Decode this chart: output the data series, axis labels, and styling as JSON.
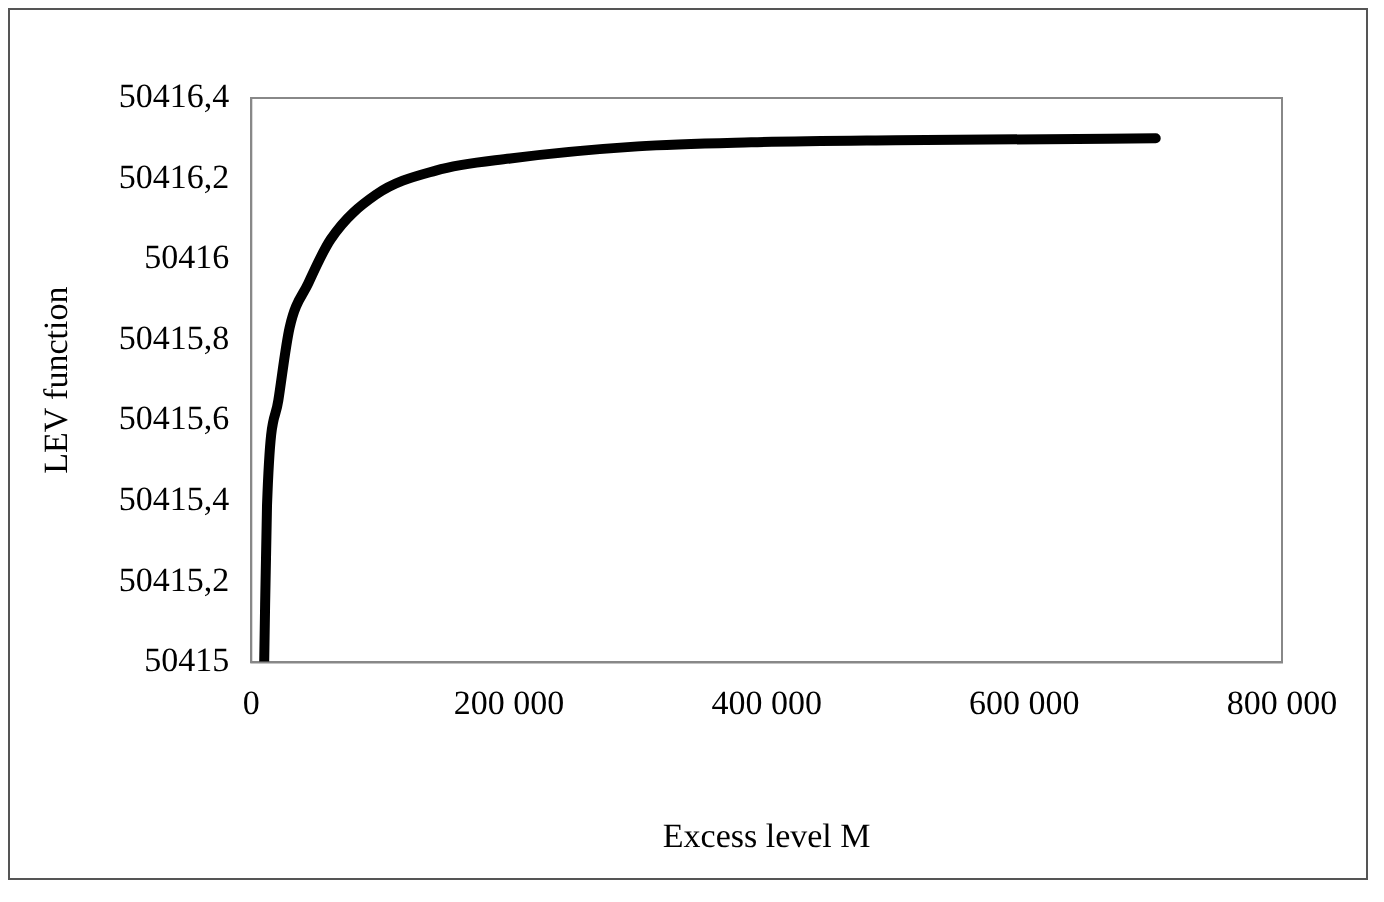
{
  "chart_data": {
    "type": "line",
    "xlabel": "Excess level M",
    "ylabel": "LEV function",
    "x": [
      10000,
      12200,
      21000,
      29700,
      44200,
      61700,
      96600,
      143200,
      201000,
      300000,
      388000,
      500000,
      702000
    ],
    "series": [
      {
        "color": "#000000",
        "values": [
          50415,
          50415.39,
          50415.65,
          50415.83,
          50415.94,
          50416.05,
          50416.16,
          50416.22,
          50416.25,
          50416.28,
          50416.29,
          50416.295,
          50416.3
        ]
      }
    ],
    "xlim": [
      0,
      800000
    ],
    "xticks": [
      0,
      {
        "value": 200000,
        "label": "200 000"
      },
      {
        "value": 400000,
        "label": "400 000"
      },
      {
        "value": 600000,
        "label": "600 000"
      },
      {
        "value": 800000,
        "label": "800 000"
      }
    ],
    "ylim": [
      50415,
      50416.4
    ],
    "yticks": [
      50415,
      {
        "value": 50415.2,
        "label": "50415,2"
      },
      {
        "value": 50415.4,
        "label": "50415,4"
      },
      {
        "value": 50415.6,
        "label": "50415,6"
      },
      {
        "value": 50415.8,
        "label": "50415,8"
      },
      50416,
      {
        "value": 50416.2,
        "label": "50416,2"
      },
      {
        "value": 50416.4,
        "label": "50416,4"
      }
    ],
    "grid": false,
    "legend": false,
    "marker": "none",
    "line_style": "solid"
  }
}
